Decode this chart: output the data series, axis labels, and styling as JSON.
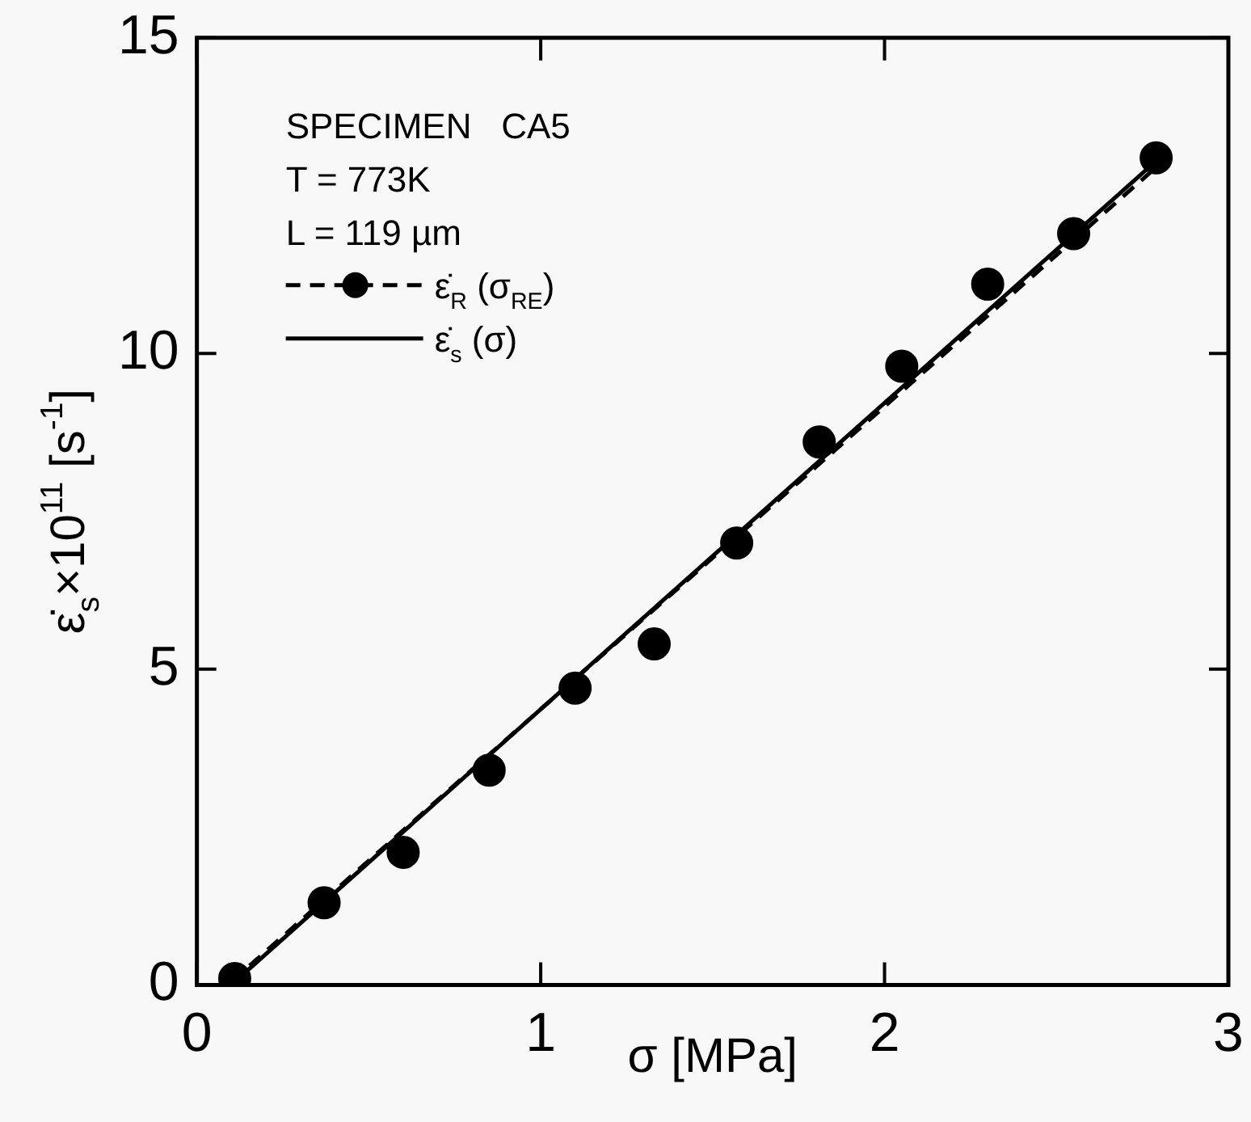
{
  "chart_data": {
    "type": "scatter",
    "xlabel": "σ [MPa]",
    "ylabel": "ε̇$_{s}$×10$^{11}$ [s$^{-1}$]",
    "annotations": [
      "SPECIMEN   CA5",
      "T = 773K",
      "L = 119 µm"
    ],
    "xlim": [
      0,
      3
    ],
    "ylim": [
      0,
      15
    ],
    "xticks": [
      0,
      1,
      2,
      3
    ],
    "yticks": [
      0,
      5,
      10,
      15
    ],
    "grid": false,
    "legend": "top left",
    "series": [
      {
        "name": "ε̇$_{R}$ (σ$_{RE}$)",
        "color": "#000000",
        "marker": "circle",
        "line_style": "dashed",
        "x": [
          0.11,
          0.37,
          0.6,
          0.85,
          1.1,
          1.33,
          1.57,
          1.81,
          2.05,
          2.3,
          2.55,
          2.79
        ],
        "values": [
          0.1,
          1.3,
          2.1,
          3.4,
          4.7,
          5.4,
          7.0,
          8.6,
          9.8,
          11.1,
          11.9,
          13.1
        ]
      },
      {
        "type": "line",
        "color": "#000000",
        "line_style": "dashed",
        "marker": "none",
        "x": [
          0.1,
          2.79
        ],
        "values": [
          0.05,
          12.95
        ]
      },
      {
        "name": "ε̇$_{s}$ (σ)",
        "type": "line",
        "color": "#000000",
        "line_style": "solid",
        "marker": "none",
        "x": [
          0.1,
          2.79
        ],
        "values": [
          0,
          13.05
        ]
      }
    ]
  }
}
